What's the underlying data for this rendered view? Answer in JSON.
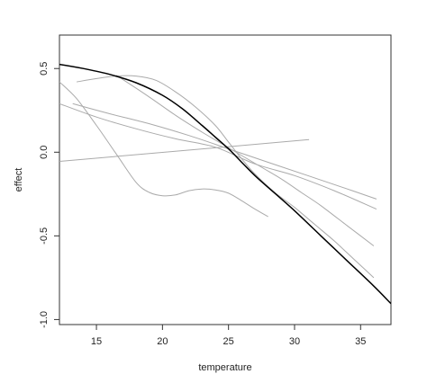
{
  "chart_data": {
    "type": "line",
    "xlabel": "temperature",
    "ylabel": "effect",
    "xlim": [
      12.2,
      37.3
    ],
    "ylim": [
      -1.03,
      0.7
    ],
    "xticks": [
      15,
      20,
      25,
      30,
      35
    ],
    "yticks": [
      0.5,
      0.0,
      -0.5,
      -1.0
    ],
    "ytick_labels": [
      "0.5",
      "0.0",
      "-0.5",
      "-1.0"
    ],
    "grid": false,
    "legend": "none",
    "colors": {
      "main": "#000000",
      "others": "#aaaaaa"
    },
    "series": [
      {
        "style": "main",
        "x": [
          12.2,
          14,
          16,
          18,
          20,
          21.5,
          23,
          24,
          25,
          26,
          27,
          28,
          30,
          32,
          34,
          36,
          37.3
        ],
        "y": [
          0.525,
          0.5,
          0.465,
          0.415,
          0.34,
          0.26,
          0.16,
          0.09,
          0.02,
          -0.06,
          -0.14,
          -0.21,
          -0.35,
          -0.5,
          -0.65,
          -0.8,
          -0.905
        ]
      },
      {
        "style": "other",
        "x": [
          12.2,
          13.5,
          15,
          16.5,
          18,
          19,
          20,
          21,
          22,
          23,
          24,
          25,
          26,
          27,
          28
        ],
        "y": [
          0.42,
          0.32,
          0.16,
          -0.01,
          -0.18,
          -0.24,
          -0.26,
          -0.255,
          -0.23,
          -0.22,
          -0.225,
          -0.245,
          -0.29,
          -0.34,
          -0.385
        ]
      },
      {
        "style": "other",
        "x": [
          13.5,
          15,
          16.5,
          18,
          19.5,
          21,
          22.5,
          24,
          25,
          26,
          27,
          28.5,
          30,
          31.5,
          33,
          34.5,
          36
        ],
        "y": [
          0.42,
          0.44,
          0.455,
          0.455,
          0.43,
          0.36,
          0.27,
          0.16,
          0.06,
          -0.04,
          -0.13,
          -0.24,
          -0.33,
          -0.43,
          -0.53,
          -0.64,
          -0.75
        ]
      },
      {
        "style": "other",
        "x": [
          16.5,
          19,
          21,
          23,
          24.5,
          26,
          27.5,
          29,
          30.5,
          32,
          34,
          36
        ],
        "y": [
          0.46,
          0.33,
          0.22,
          0.12,
          0.05,
          -0.02,
          -0.09,
          -0.16,
          -0.24,
          -0.32,
          -0.44,
          -0.56
        ]
      },
      {
        "style": "other",
        "x": [
          13.2,
          16,
          19,
          22,
          25,
          28,
          31,
          34,
          36.2
        ],
        "y": [
          0.29,
          0.23,
          0.17,
          0.1,
          0.02,
          -0.06,
          -0.14,
          -0.22,
          -0.28
        ]
      },
      {
        "style": "other",
        "x": [
          12.2,
          15,
          18,
          21,
          24,
          27,
          30,
          33,
          36.2
        ],
        "y": [
          0.29,
          0.21,
          0.14,
          0.08,
          0.03,
          -0.07,
          -0.14,
          -0.23,
          -0.34
        ]
      },
      {
        "style": "other",
        "x": [
          12.2,
          31.1
        ],
        "y": [
          -0.055,
          0.075
        ]
      }
    ]
  }
}
